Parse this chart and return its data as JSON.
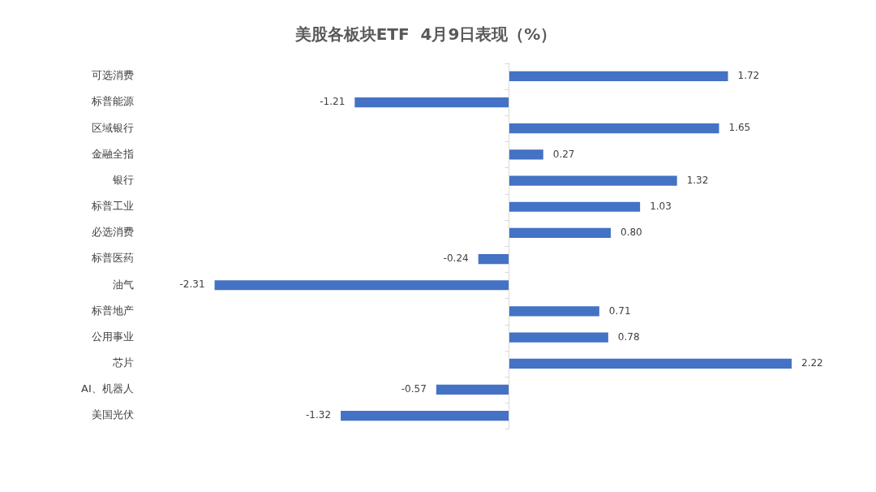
{
  "chart_data": {
    "type": "bar",
    "orientation": "horizontal",
    "title": "美股各板块ETF  4月9日表现（%）",
    "categories": [
      "可选消费",
      "标普能源",
      "区域银行",
      "金融全指",
      "银行",
      "标普工业",
      "必选消费",
      "标普医药",
      "油气",
      "标普地产",
      "公用事业",
      "芯片",
      "AI、机器人",
      "美国光伏"
    ],
    "values": [
      1.72,
      -1.21,
      1.65,
      0.27,
      1.32,
      1.03,
      0.8,
      -0.24,
      -2.31,
      0.71,
      0.78,
      2.22,
      -0.57,
      -1.32
    ],
    "value_labels": [
      "1.72",
      "-1.21",
      "1.65",
      "0.27",
      "1.32",
      "1.03",
      "0.80",
      "-0.24",
      "-2.31",
      "0.71",
      "0.78",
      "2.22",
      "-0.57",
      "-1.32"
    ],
    "color": "#4472c4",
    "tick_labels": "y"
  }
}
